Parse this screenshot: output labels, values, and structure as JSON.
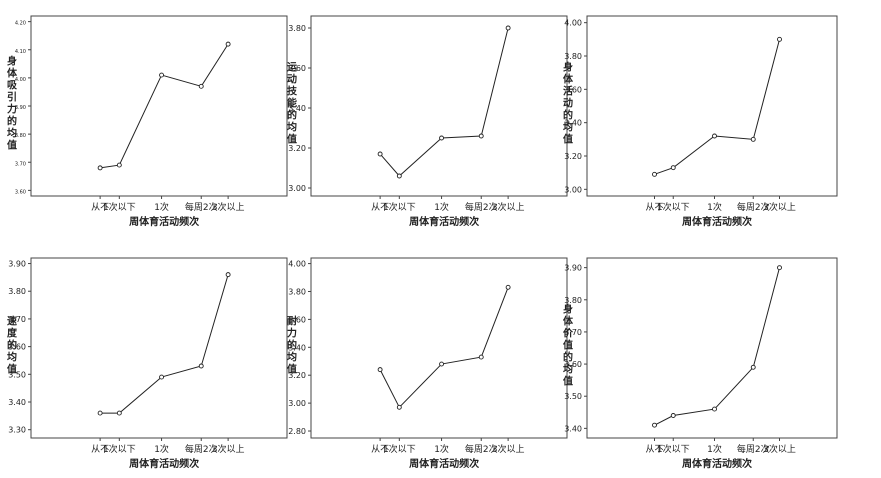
{
  "top_strip_text": "",
  "chart_data": [
    {
      "type": "line",
      "categories": [
        "从不",
        "1次以下",
        "1次",
        "每周2次",
        "3次以上"
      ],
      "values": [
        3.68,
        3.69,
        4.01,
        3.97,
        4.12
      ],
      "ylabel": "身体吸引力的均值",
      "xlabel": "周体育活动频次",
      "ylim": [
        3.58,
        4.22
      ],
      "ticks": [
        "3.60",
        "3.70",
        "3.80",
        "3.90",
        "4.00",
        "4.10",
        "4.20"
      ],
      "tick_values": [
        3.6,
        3.7,
        3.8,
        3.9,
        4.0,
        4.1,
        4.2
      ]
    },
    {
      "type": "line",
      "categories": [
        "从不",
        "1次以下",
        "1次",
        "每周2次",
        "3次以上"
      ],
      "values": [
        3.17,
        3.06,
        3.25,
        3.26,
        3.8
      ],
      "ylabel": "运动技能的均值",
      "xlabel": "周体育活动频次",
      "ylim": [
        2.96,
        3.86
      ],
      "ticks": [
        "3.00",
        "3.20",
        "3.40",
        "3.60",
        "3.80"
      ],
      "tick_values": [
        3.0,
        3.2,
        3.4,
        3.6,
        3.8
      ]
    },
    {
      "type": "line",
      "categories": [
        "从不",
        "1次以下",
        "1次",
        "每周2次",
        "3次以上"
      ],
      "values": [
        3.09,
        3.13,
        3.32,
        3.3,
        3.9
      ],
      "ylabel": "身体活动的均值",
      "xlabel": "周体育活动频次",
      "ylim": [
        2.96,
        4.04
      ],
      "ticks": [
        "3.00",
        "3.20",
        "3.40",
        "3.60",
        "3.80",
        "4.00"
      ],
      "tick_values": [
        3.0,
        3.2,
        3.4,
        3.6,
        3.8,
        4.0
      ]
    },
    {
      "type": "line",
      "categories": [
        "从不",
        "1次以下",
        "1次",
        "每周2次",
        "3次以上"
      ],
      "values": [
        3.36,
        3.36,
        3.49,
        3.53,
        3.86
      ],
      "ylabel": "速度的均值",
      "xlabel": "周体育活动频次",
      "ylim": [
        3.27,
        3.92
      ],
      "ticks": [
        "3.30",
        "3.40",
        "3.50",
        "3.60",
        "3.70",
        "3.80",
        "3.90"
      ],
      "tick_values": [
        3.3,
        3.4,
        3.5,
        3.6,
        3.7,
        3.8,
        3.9
      ]
    },
    {
      "type": "line",
      "categories": [
        "从不",
        "1次以下",
        "1次",
        "每周2次",
        "3次以上"
      ],
      "values": [
        3.24,
        2.97,
        3.28,
        3.33,
        3.83
      ],
      "ylabel": "耐力的均值",
      "xlabel": "周体育活动频次",
      "ylim": [
        2.75,
        4.04
      ],
      "ticks": [
        "2.80",
        "3.00",
        "3.20",
        "3.40",
        "3.60",
        "3.80",
        "4.00"
      ],
      "tick_values": [
        2.8,
        3.0,
        3.2,
        3.4,
        3.6,
        3.8,
        4.0
      ]
    },
    {
      "type": "line",
      "categories": [
        "从不",
        "1次以下",
        "1次",
        "每周2次",
        "3次以上"
      ],
      "values": [
        3.41,
        3.44,
        3.46,
        3.59,
        3.9
      ],
      "ylabel": "身体价值的均值",
      "xlabel": "周体育活动频次",
      "ylim": [
        3.37,
        3.93
      ],
      "ticks": [
        "3.40",
        "3.50",
        "3.60",
        "3.70",
        "3.80",
        "3.90"
      ],
      "tick_values": [
        3.4,
        3.5,
        3.6,
        3.7,
        3.8,
        3.9
      ]
    }
  ]
}
